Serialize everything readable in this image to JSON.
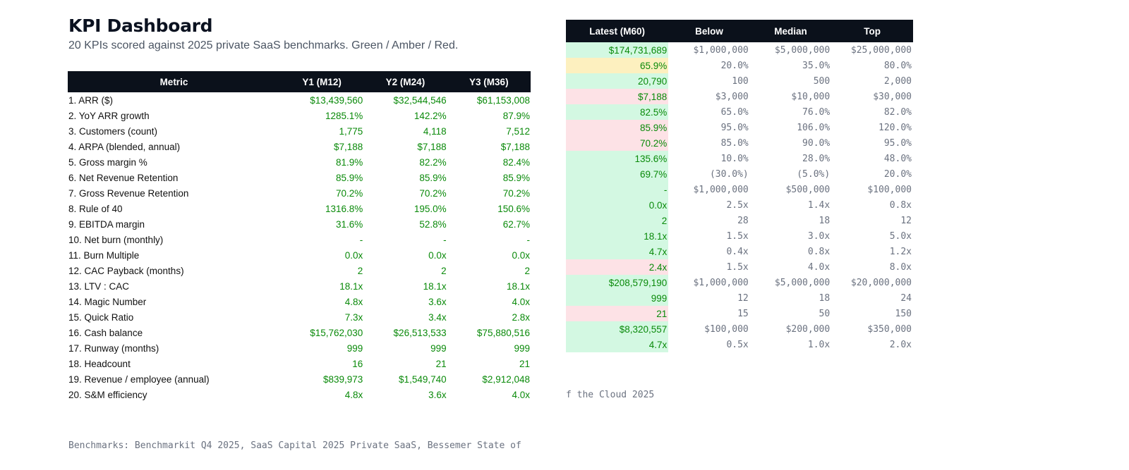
{
  "page": {
    "title": "KPI Dashboard",
    "subtitle": "20 KPIs scored against 2025 private SaaS benchmarks. Green / Amber / Red."
  },
  "colors": {
    "header_bg": "#0b111b",
    "value_green": "#0a8a0a",
    "status_green": "#d3f8e2",
    "status_amber": "#fdf0bf",
    "status_red": "#fde2e6"
  },
  "left_table": {
    "headers": [
      "Metric",
      "Y1 (M12)",
      "Y2 (M24)",
      "Y3 (M36)"
    ],
    "rows": [
      {
        "metric": "1. ARR ($)",
        "y1": "$13,439,560",
        "y2": "$32,544,546",
        "y3": "$61,153,008"
      },
      {
        "metric": "2. YoY ARR growth",
        "y1": "1285.1%",
        "y2": "142.2%",
        "y3": "87.9%"
      },
      {
        "metric": "3. Customers (count)",
        "y1": "1,775",
        "y2": "4,118",
        "y3": "7,512"
      },
      {
        "metric": "4. ARPA (blended, annual)",
        "y1": "$7,188",
        "y2": "$7,188",
        "y3": "$7,188"
      },
      {
        "metric": "5. Gross margin %",
        "y1": "81.9%",
        "y2": "82.2%",
        "y3": "82.4%"
      },
      {
        "metric": "6. Net Revenue Retention",
        "y1": "85.9%",
        "y2": "85.9%",
        "y3": "85.9%"
      },
      {
        "metric": "7. Gross Revenue Retention",
        "y1": "70.2%",
        "y2": "70.2%",
        "y3": "70.2%"
      },
      {
        "metric": "8. Rule of 40",
        "y1": "1316.8%",
        "y2": "195.0%",
        "y3": "150.6%"
      },
      {
        "metric": "9. EBITDA margin",
        "y1": "31.6%",
        "y2": "52.8%",
        "y3": "62.7%"
      },
      {
        "metric": "10. Net burn (monthly)",
        "y1": "-",
        "y2": "-",
        "y3": "-"
      },
      {
        "metric": "11. Burn Multiple",
        "y1": "0.0x",
        "y2": "0.0x",
        "y3": "0.0x"
      },
      {
        "metric": "12. CAC Payback (months)",
        "y1": "2",
        "y2": "2",
        "y3": "2"
      },
      {
        "metric": "13. LTV : CAC",
        "y1": "18.1x",
        "y2": "18.1x",
        "y3": "18.1x"
      },
      {
        "metric": "14. Magic Number",
        "y1": "4.8x",
        "y2": "3.6x",
        "y3": "4.0x"
      },
      {
        "metric": "15. Quick Ratio",
        "y1": "7.3x",
        "y2": "3.4x",
        "y3": "2.8x"
      },
      {
        "metric": "16. Cash balance",
        "y1": "$15,762,030",
        "y2": "$26,513,533",
        "y3": "$75,880,516"
      },
      {
        "metric": "17. Runway (months)",
        "y1": "999",
        "y2": "999",
        "y3": "999"
      },
      {
        "metric": "18. Headcount",
        "y1": "16",
        "y2": "21",
        "y3": "21"
      },
      {
        "metric": "19. Revenue / employee (annual)",
        "y1": "$839,973",
        "y2": "$1,549,740",
        "y3": "$2,912,048"
      },
      {
        "metric": "20. S&M efficiency",
        "y1": "4.8x",
        "y2": "3.6x",
        "y3": "4.0x"
      }
    ]
  },
  "right_table": {
    "headers": [
      "Latest (M60)",
      "Below",
      "Median",
      "Top"
    ],
    "rows": [
      {
        "latest": "$174,731,689",
        "status": "green",
        "below": "$1,000,000",
        "median": "$5,000,000",
        "top": "$25,000,000"
      },
      {
        "latest": "65.9%",
        "status": "amber",
        "below": "20.0%",
        "median": "35.0%",
        "top": "80.0%"
      },
      {
        "latest": "20,790",
        "status": "green",
        "below": "100",
        "median": "500",
        "top": "2,000"
      },
      {
        "latest": "$7,188",
        "status": "red",
        "below": "$3,000",
        "median": "$10,000",
        "top": "$30,000"
      },
      {
        "latest": "82.5%",
        "status": "green",
        "below": "65.0%",
        "median": "76.0%",
        "top": "82.0%"
      },
      {
        "latest": "85.9%",
        "status": "red",
        "below": "95.0%",
        "median": "106.0%",
        "top": "120.0%"
      },
      {
        "latest": "70.2%",
        "status": "red",
        "below": "85.0%",
        "median": "90.0%",
        "top": "95.0%"
      },
      {
        "latest": "135.6%",
        "status": "green",
        "below": "10.0%",
        "median": "28.0%",
        "top": "48.0%"
      },
      {
        "latest": "69.7%",
        "status": "green",
        "below": "(30.0%)",
        "median": "(5.0%)",
        "top": "20.0%"
      },
      {
        "latest": "-",
        "status": "green",
        "below": "$1,000,000",
        "median": "$500,000",
        "top": "$100,000"
      },
      {
        "latest": "0.0x",
        "status": "green",
        "below": "2.5x",
        "median": "1.4x",
        "top": "0.8x"
      },
      {
        "latest": "2",
        "status": "green",
        "below": "28",
        "median": "18",
        "top": "12"
      },
      {
        "latest": "18.1x",
        "status": "green",
        "below": "1.5x",
        "median": "3.0x",
        "top": "5.0x"
      },
      {
        "latest": "4.7x",
        "status": "green",
        "below": "0.4x",
        "median": "0.8x",
        "top": "1.2x"
      },
      {
        "latest": "2.4x",
        "status": "red",
        "below": "1.5x",
        "median": "4.0x",
        "top": "8.0x"
      },
      {
        "latest": "$208,579,190",
        "status": "green",
        "below": "$1,000,000",
        "median": "$5,000,000",
        "top": "$20,000,000"
      },
      {
        "latest": "999",
        "status": "green",
        "below": "12",
        "median": "18",
        "top": "24"
      },
      {
        "latest": "21",
        "status": "red",
        "below": "15",
        "median": "50",
        "top": "150"
      },
      {
        "latest": "$8,320,557",
        "status": "green",
        "below": "$100,000",
        "median": "$200,000",
        "top": "$350,000"
      },
      {
        "latest": "4.7x",
        "status": "green",
        "below": "0.5x",
        "median": "1.0x",
        "top": "2.0x"
      }
    ]
  },
  "footnote": {
    "part1": "Benchmarks: Benchmarkit Q4 2025, SaaS Capital 2025 Private SaaS, Bessemer State of",
    "part2": "f the Cloud 2025"
  }
}
